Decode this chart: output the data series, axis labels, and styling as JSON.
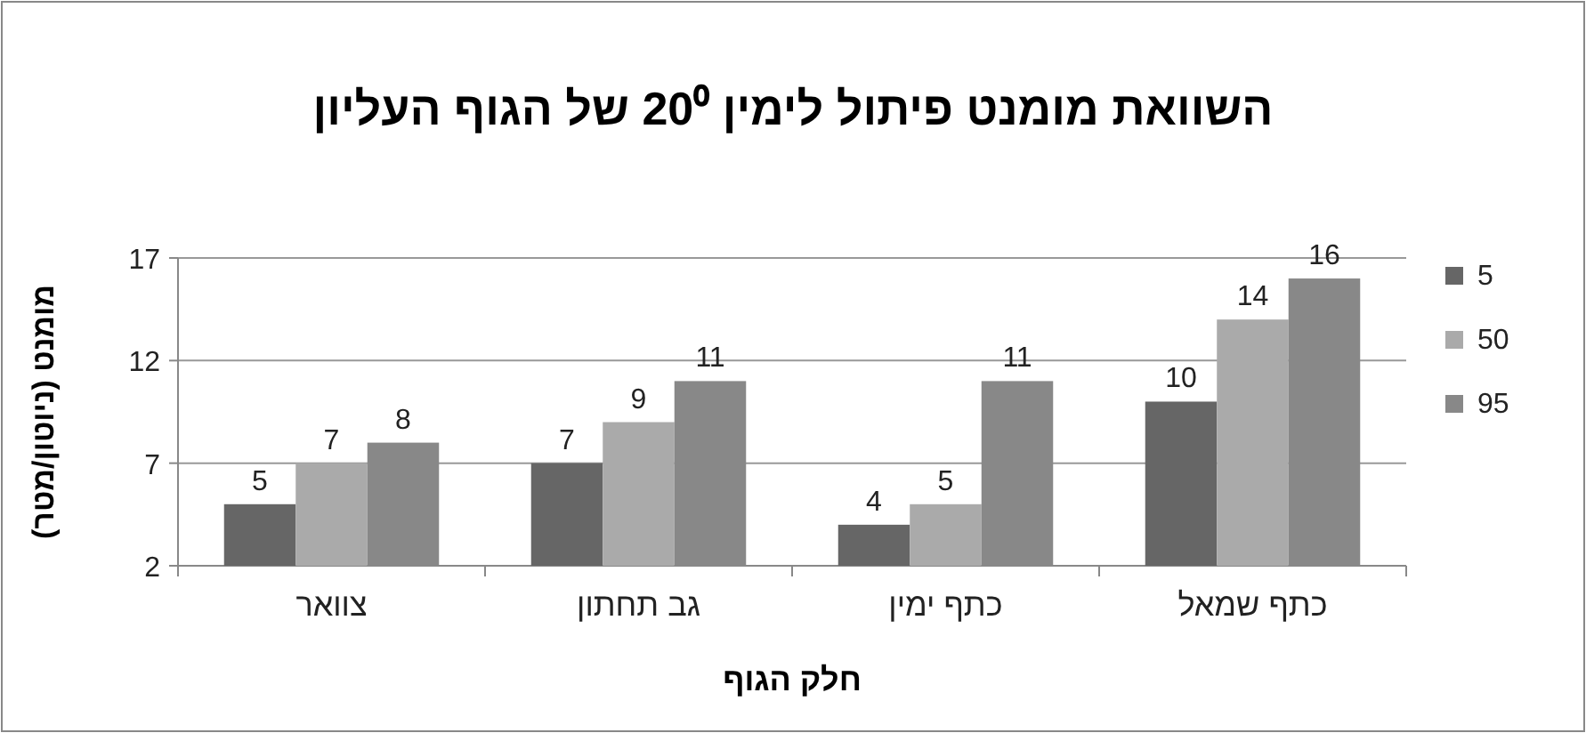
{
  "chart_data": {
    "type": "bar",
    "title": "השוואת מומנט פיתול לימין 20⁰ של הגוף העליון",
    "xlabel": "חלק הגוף",
    "ylabel": "מומנט (ניוטון/מטר)",
    "categories": [
      "צוואר",
      "גב תחתון",
      "כתף ימין",
      "כתף שמאל"
    ],
    "series": [
      {
        "name": "5",
        "color": "#666666",
        "values": [
          5,
          7,
          4,
          10
        ]
      },
      {
        "name": "50",
        "color": "#aaaaaa",
        "values": [
          7,
          9,
          5,
          14
        ]
      },
      {
        "name": "95",
        "color": "#888888",
        "values": [
          8,
          11,
          11,
          16
        ]
      }
    ],
    "ylim": [
      2,
      17
    ],
    "yticks": [
      2,
      7,
      12,
      17
    ],
    "grid": "y",
    "legend": "right",
    "data_labels": true
  }
}
